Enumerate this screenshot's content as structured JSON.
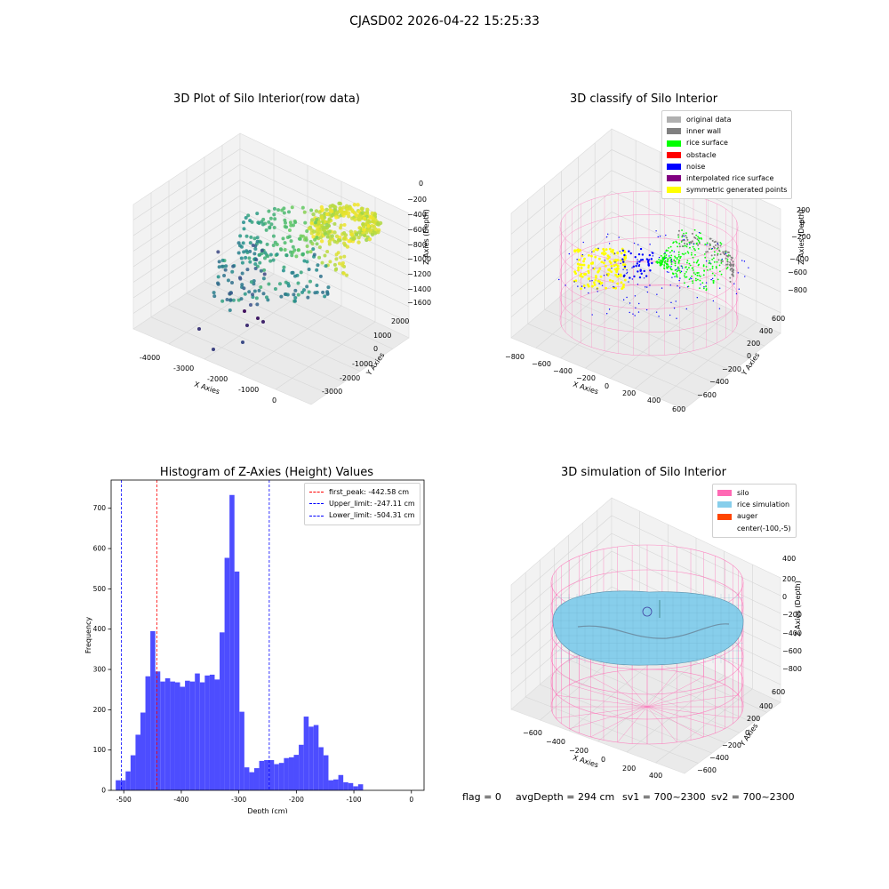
{
  "figure_title": "CJASD02 2026-04-22 15:25:33",
  "footer": {
    "flag": "flag = 0",
    "avg_depth": "avgDepth = 294 cm",
    "sv1": "sv1 = 700~2300",
    "sv2": "sv2 = 700~2300"
  },
  "colors": {
    "original_data": "#b0b0b0",
    "inner_wall": "#808080",
    "rice_surface": "#00ff00",
    "obstacle": "#ff0000",
    "noise": "#0000ff",
    "interpolated_rice_surface": "#800080",
    "symmetric_generated_points": "#ffff00",
    "silo": "#ff69b4",
    "rice_simulation": "#87ceeb",
    "auger": "#ff4500",
    "histogram_bar": "#4d4dff"
  },
  "plot1": {
    "title": "3D Plot of Silo Interior(row data)",
    "xlabel": "X Axies",
    "ylabel": "Y Axies",
    "zlabel": "Z Axies (Depth)",
    "x_ticks": [
      "-4000",
      "-3000",
      "-2000",
      "-1000",
      "0"
    ],
    "y_ticks": [
      "-3000",
      "-2000",
      "-1000",
      "0",
      "1000",
      "2000"
    ],
    "z_ticks": [
      "0",
      "−200",
      "−400",
      "−600",
      "−800",
      "−1000",
      "−1200",
      "−1400",
      "−1600"
    ]
  },
  "plot2": {
    "title": "3D classify of Silo Interior",
    "xlabel": "X Axies",
    "ylabel": "Y Axies",
    "zlabel": "Z Axies (Depth)",
    "x_ticks": [
      "−800",
      "−600",
      "−400",
      "−200",
      "0",
      "200",
      "400",
      "600"
    ],
    "y_ticks": [
      "−600",
      "−400",
      "−200",
      "0",
      "200",
      "400",
      "600"
    ],
    "z_ticks": [
      "200",
      "0",
      "−200",
      "−400",
      "−600",
      "−800"
    ],
    "legend": [
      {
        "label": "original data",
        "color_key": "original_data"
      },
      {
        "label": "inner wall",
        "color_key": "inner_wall"
      },
      {
        "label": "rice surface",
        "color_key": "rice_surface"
      },
      {
        "label": "obstacle",
        "color_key": "obstacle"
      },
      {
        "label": "noise",
        "color_key": "noise"
      },
      {
        "label": "interpolated rice surface",
        "color_key": "interpolated_rice_surface"
      },
      {
        "label": "symmetric generated points",
        "color_key": "symmetric_generated_points"
      }
    ]
  },
  "plot4": {
    "title": "3D simulation of Silo Interior",
    "xlabel": "X Axies",
    "ylabel": "Y Axies",
    "zlabel": "Z Axies (Depth)",
    "x_ticks": [
      "−600",
      "−400",
      "−200",
      "0",
      "200",
      "400"
    ],
    "y_ticks": [
      "−600",
      "−400",
      "−200",
      "0",
      "200",
      "400",
      "600"
    ],
    "z_ticks": [
      "400",
      "200",
      "0",
      "−200",
      "−400",
      "−600",
      "−800"
    ],
    "legend": [
      {
        "label": "silo",
        "color_key": "silo"
      },
      {
        "label": "rice simulation",
        "color_key": "rice_simulation"
      },
      {
        "label": "auger",
        "color_key": "auger"
      },
      {
        "label": "center(-100,-5)",
        "color_key": ""
      }
    ]
  },
  "chart_data": {
    "type": "bar",
    "title": "Histogram of Z-Axies (Height) Values",
    "xlabel": "Depth (cm)",
    "ylabel": "Frequency",
    "xlim": [
      -522,
      22
    ],
    "ylim": [
      0,
      770
    ],
    "x_ticks": [
      -500,
      -400,
      -300,
      -200,
      -100,
      0
    ],
    "y_ticks": [
      0,
      100,
      200,
      300,
      400,
      500,
      600,
      700
    ],
    "bin_width": 8.6,
    "bin_edges_start": -514,
    "counts": [
      25,
      25,
      47,
      87,
      138,
      193,
      283,
      395,
      295,
      270,
      278,
      270,
      268,
      257,
      272,
      270,
      290,
      268,
      285,
      287,
      275,
      392,
      577,
      733,
      543,
      195,
      57,
      45,
      55,
      73,
      75,
      75,
      65,
      68,
      80,
      82,
      88,
      113,
      183,
      158,
      162,
      107,
      87,
      25,
      27,
      38,
      20,
      18,
      10,
      15
    ],
    "vlines": [
      {
        "label": "first_peak: -442.58 cm",
        "x": -442.58,
        "color": "#ff0000"
      },
      {
        "label": "Upper_limit: -247.11 cm",
        "x": -247.11,
        "color": "#0000ff"
      },
      {
        "label": "Lower_limit: -504.31 cm",
        "x": -504.31,
        "color": "#0000ff"
      }
    ]
  }
}
